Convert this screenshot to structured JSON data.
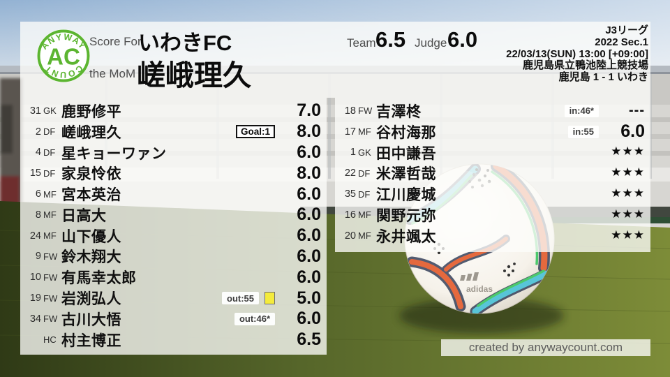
{
  "logo": {
    "top_text": "ANYWAY",
    "center_text": "AC",
    "bottom_text": "COUNT"
  },
  "header": {
    "score_for_label": "Score For",
    "team_name": "いわきFC",
    "mom_label": "the MoM",
    "mom_name": "嵯峨理久",
    "team_label": "Team",
    "team_score": "6.5",
    "judge_label": "Judge",
    "judge_score": "6.0",
    "info_lines": [
      "J3リーグ",
      "2022 Sec.1",
      "22/03/13(SUN) 13:00 [+09:00]",
      "鹿児島県立鴨池陸上競技場",
      "鹿児島 1 - 1 いわき"
    ]
  },
  "starters": [
    {
      "number": "31",
      "position": "GK",
      "name": "鹿野修平",
      "rating": "7.0"
    },
    {
      "number": "2",
      "position": "DF",
      "name": "嵯峨理久",
      "rating": "8.0",
      "goal_badge": "Goal:1"
    },
    {
      "number": "4",
      "position": "DF",
      "name": "星キョーワァン",
      "rating": "6.0"
    },
    {
      "number": "15",
      "position": "DF",
      "name": "家泉怜依",
      "rating": "8.0"
    },
    {
      "number": "6",
      "position": "MF",
      "name": "宮本英治",
      "rating": "6.0"
    },
    {
      "number": "8",
      "position": "MF",
      "name": "日高大",
      "rating": "6.0"
    },
    {
      "number": "24",
      "position": "MF",
      "name": "山下優人",
      "rating": "6.0"
    },
    {
      "number": "9",
      "position": "FW",
      "name": "鈴木翔大",
      "rating": "6.0"
    },
    {
      "number": "10",
      "position": "FW",
      "name": "有馬幸太郎",
      "rating": "6.0"
    },
    {
      "number": "19",
      "position": "FW",
      "name": "岩渕弘人",
      "rating": "5.0",
      "sub_badge": "out:55",
      "yellow_card": true
    },
    {
      "number": "34",
      "position": "FW",
      "name": "古川大悟",
      "rating": "6.0",
      "sub_badge": "out:46*"
    },
    {
      "number": "",
      "position": "HC",
      "name": "村主博正",
      "rating": "6.5"
    }
  ],
  "bench": [
    {
      "number": "18",
      "position": "FW",
      "name": "吉澤柊",
      "rating": "---",
      "sub_badge": "in:46*"
    },
    {
      "number": "17",
      "position": "MF",
      "name": "谷村海那",
      "rating": "6.0",
      "sub_badge": "in:55"
    },
    {
      "number": "1",
      "position": "GK",
      "name": "田中謙吾",
      "rating": "★★★"
    },
    {
      "number": "22",
      "position": "DF",
      "name": "米澤哲哉",
      "rating": "★★★"
    },
    {
      "number": "35",
      "position": "DF",
      "name": "江川慶城",
      "rating": "★★★"
    },
    {
      "number": "16",
      "position": "MF",
      "name": "関野元弥",
      "rating": "★★★"
    },
    {
      "number": "20",
      "position": "MF",
      "name": "永井颯太",
      "rating": "★★★"
    }
  ],
  "footer": {
    "credit": "created by anywaycount.com"
  },
  "colors": {
    "brand_green": "#5cb531",
    "yellow_card": "#f4eb3c",
    "text": "#0c0c0c"
  }
}
